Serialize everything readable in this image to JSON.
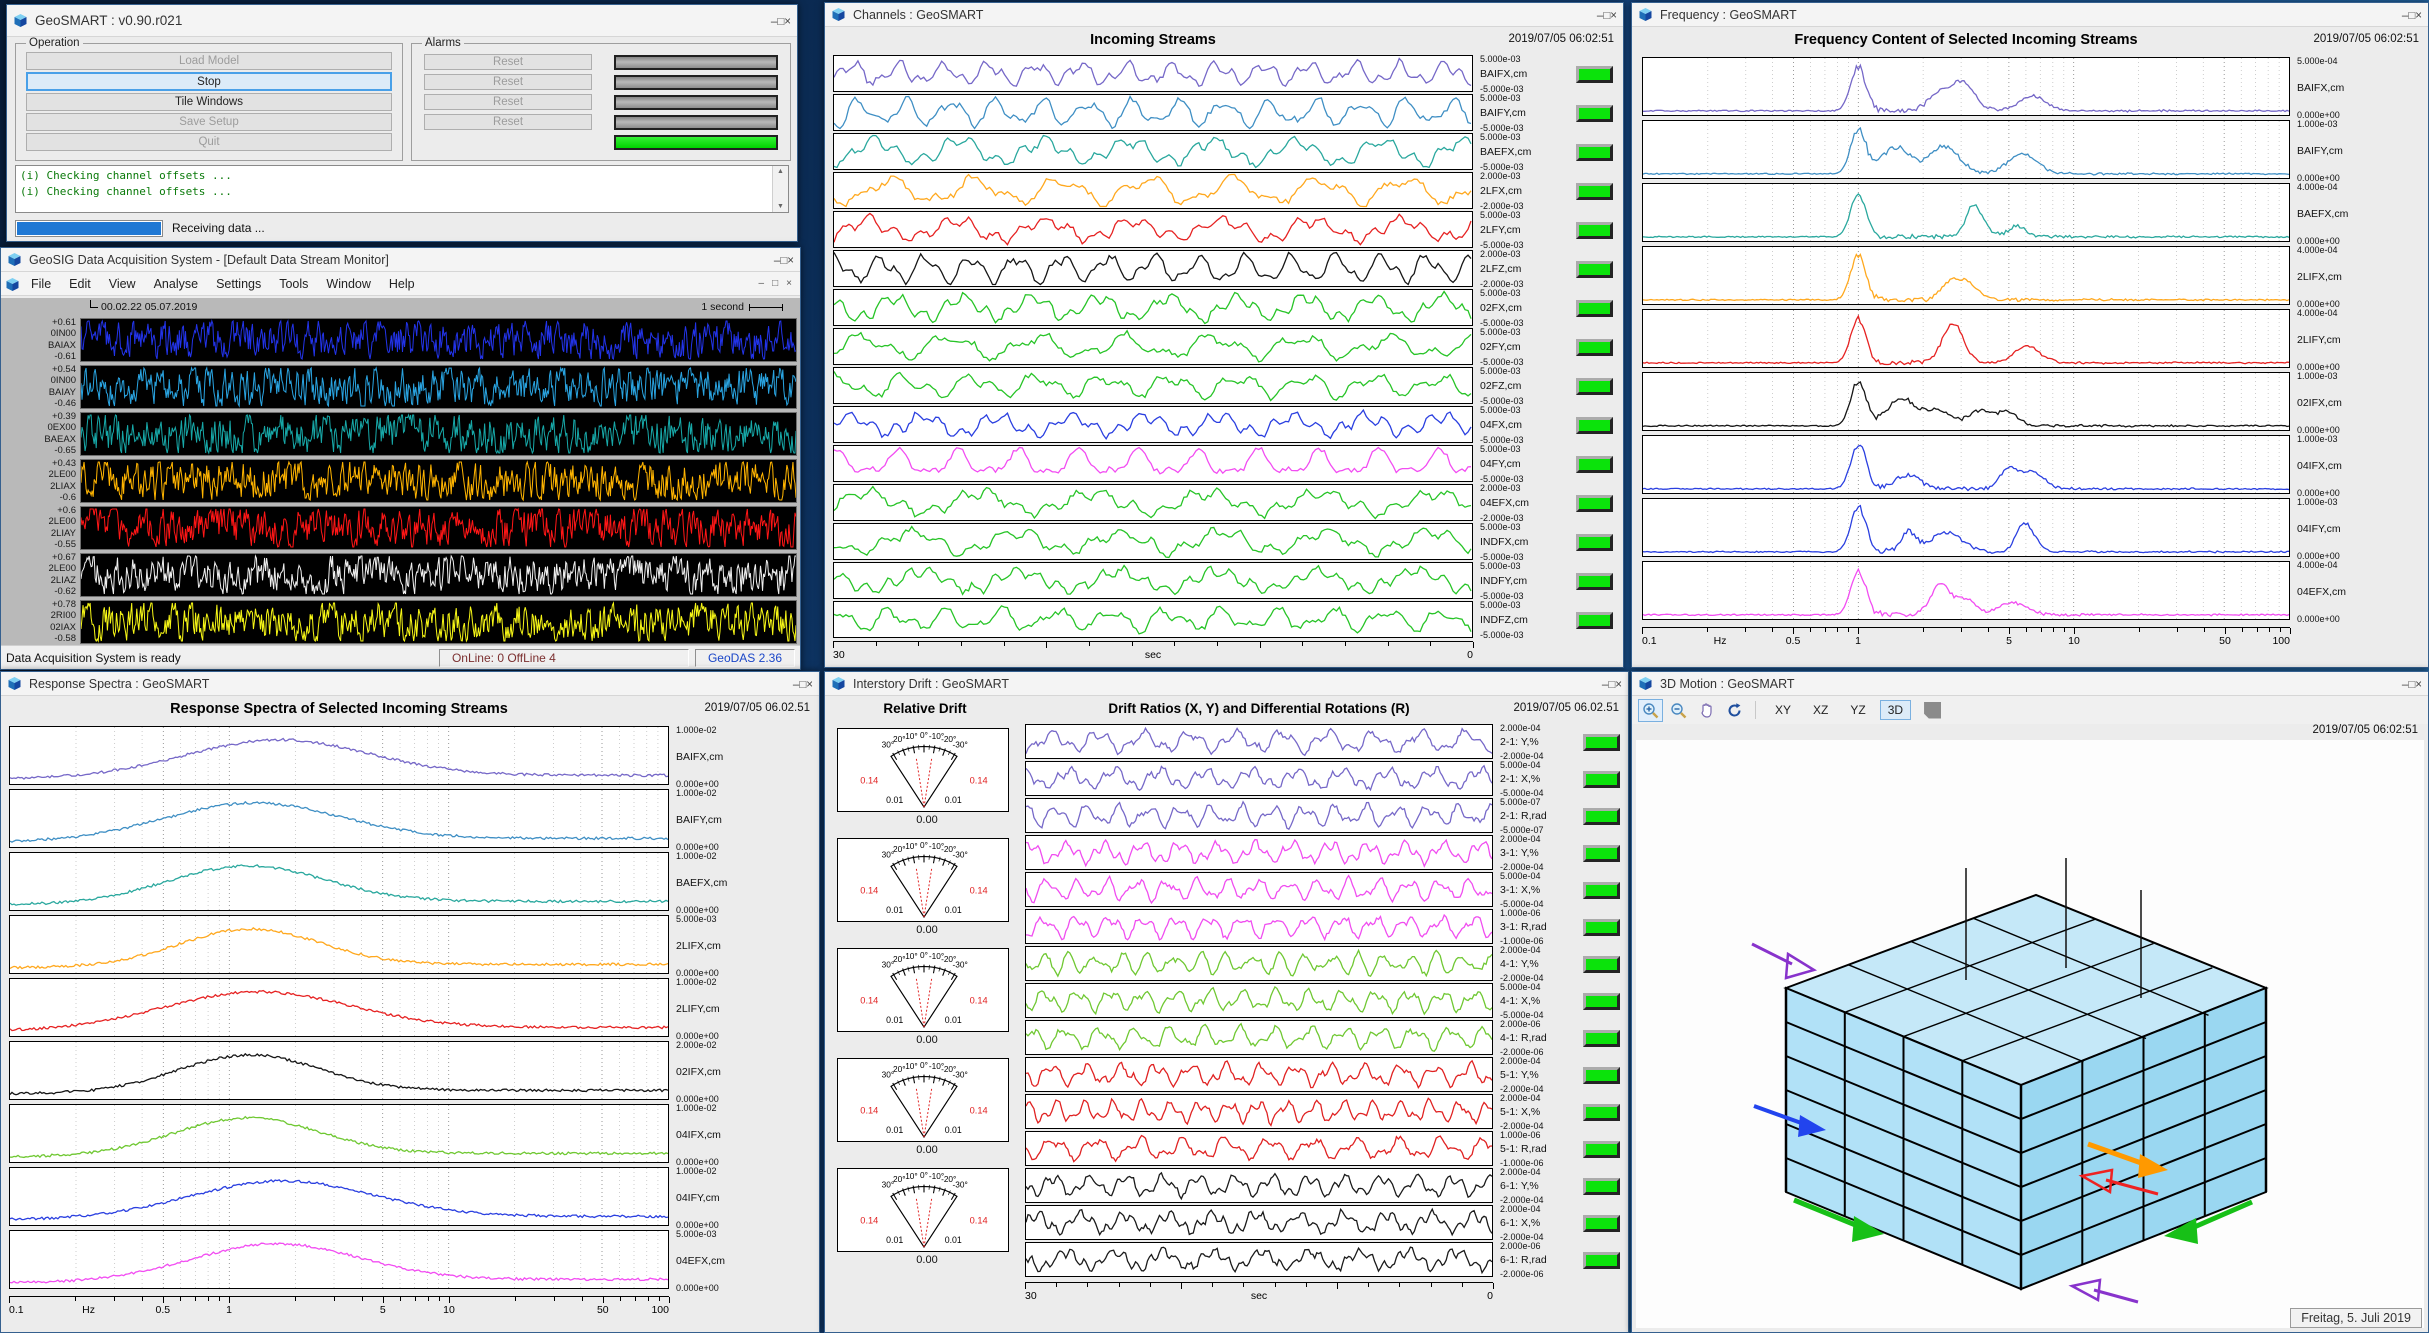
{
  "chrome": {
    "buttons": [
      "–",
      "□",
      "×"
    ]
  },
  "desktop": {
    "date_tooltip": "Freitag, 5. Juli 2019"
  },
  "control_window": {
    "title": "GeoSMART :  v0.90.r021",
    "operation": {
      "legend": "Operation",
      "buttons": [
        {
          "label": "Load Model",
          "state": "disabled"
        },
        {
          "label": "Stop",
          "state": "active"
        },
        {
          "label": "Tile Windows",
          "state": "normal"
        },
        {
          "label": "Save Setup",
          "state": "disabled"
        },
        {
          "label": "Quit",
          "state": "disabled"
        }
      ]
    },
    "alarms": {
      "legend": "Alarms",
      "reset_label": "Reset",
      "rows": [
        {
          "reset": true,
          "bar": "gray"
        },
        {
          "reset": true,
          "bar": "gray"
        },
        {
          "reset": true,
          "bar": "gray"
        },
        {
          "reset": true,
          "bar": "gray"
        },
        {
          "reset": false,
          "bar": "green"
        }
      ]
    },
    "log_lines": [
      "(i) Checking channel offsets ...",
      "(i) Checking channel offsets ..."
    ],
    "progress_label": "Receiving data ...",
    "scroll_up": "▲",
    "scroll_down": "▼"
  },
  "das_window": {
    "title": "GeoSIG Data Acquisition System - [Default Data Stream Monitor]",
    "menu": [
      "File",
      "Edit",
      "View",
      "Analyse",
      "Settings",
      "Tools",
      "Window",
      "Help"
    ],
    "mdi_buttons": [
      "–",
      "□",
      "×"
    ],
    "header": {
      "timestamp": "00.02.22 05.07.2019",
      "scale_label": "1 second"
    },
    "channels": [
      {
        "max": "+0.61",
        "id": "0IN00",
        "name": "BAIAX",
        "min": "-0.61",
        "color": "#2233e8"
      },
      {
        "max": "+0.54",
        "id": "0IN00",
        "name": "BAIAY",
        "min": "-0.46",
        "color": "#29a3e0"
      },
      {
        "max": "+0.39",
        "id": "0EX00",
        "name": "BAEAX",
        "min": "-0.65",
        "color": "#17a8a8"
      },
      {
        "max": "+0.43",
        "id": "2LE00",
        "name": "2LIAX",
        "min": "-0.6",
        "color": "#ffb400"
      },
      {
        "max": "+0.6",
        "id": "2LE00",
        "name": "2LIAY",
        "min": "-0.55",
        "color": "#ff1616"
      },
      {
        "max": "+0.67",
        "id": "2LE00",
        "name": "2LIAZ",
        "min": "-0.62",
        "color": "#efefef"
      },
      {
        "max": "+0.78",
        "id": "2RI00",
        "name": "02IAX",
        "min": "-0.58",
        "color": "#f6f616"
      }
    ],
    "status": {
      "message": "Data Acquisition System is ready",
      "online": "OnLine: 0  OffLine 4",
      "version": "GeoDAS 2.36"
    }
  },
  "channels_window": {
    "title": "Channels : GeoSMART",
    "heading": "Incoming Streams",
    "timestamp": "2019/07/05 06:02:51",
    "x_axis": {
      "left": "30",
      "unit": "sec",
      "right": "0"
    },
    "streams": [
      {
        "name": "BAIFX,cm",
        "max": "5.000e-03",
        "min": "-5.000e-03",
        "color": "#7668c8"
      },
      {
        "name": "BAIFY,cm",
        "max": "5.000e-03",
        "min": "-5.000e-03",
        "color": "#3f8fc4"
      },
      {
        "name": "BAEFX,cm",
        "max": "5.000e-03",
        "min": "-5.000e-03",
        "color": "#2aa89e"
      },
      {
        "name": "2LFX,cm",
        "max": "2.000e-03",
        "min": "-2.000e-03",
        "color": "#ffa81e"
      },
      {
        "name": "2LFY,cm",
        "max": "5.000e-03",
        "min": "-5.000e-03",
        "color": "#e62222"
      },
      {
        "name": "2LFZ,cm",
        "max": "2.000e-03",
        "min": "-2.000e-03",
        "color": "#161616"
      },
      {
        "name": "02FX,cm",
        "max": "5.000e-03",
        "min": "-5.000e-03",
        "color": "#27c427"
      },
      {
        "name": "02FY,cm",
        "max": "5.000e-03",
        "min": "-5.000e-03",
        "color": "#27c427"
      },
      {
        "name": "02FZ,cm",
        "max": "5.000e-03",
        "min": "-5.000e-03",
        "color": "#27c427"
      },
      {
        "name": "04FX,cm",
        "max": "5.000e-03",
        "min": "-5.000e-03",
        "color": "#2a3fe0"
      },
      {
        "name": "04FY,cm",
        "max": "5.000e-03",
        "min": "-5.000e-03",
        "color": "#f24df2"
      },
      {
        "name": "04EFX,cm",
        "max": "2.000e-03",
        "min": "-2.000e-03",
        "color": "#27c427"
      },
      {
        "name": "INDFX,cm",
        "max": "5.000e-03",
        "min": "-5.000e-03",
        "color": "#27c427"
      },
      {
        "name": "INDFY,cm",
        "max": "5.000e-03",
        "min": "-5.000e-03",
        "color": "#27c427"
      },
      {
        "name": "INDFZ,cm",
        "max": "5.000e-03",
        "min": "-5.000e-03",
        "color": "#27c427"
      }
    ]
  },
  "frequency_window": {
    "title": "Frequency : GeoSMART",
    "heading": "Frequency Content of Selected Incoming Streams",
    "timestamp": "2019/07/05 06:02:51",
    "x_axis": {
      "ticks": [
        "0.1",
        "0.5",
        "1",
        "5",
        "10",
        "50",
        "100"
      ],
      "unit": "Hz"
    },
    "streams": [
      {
        "name": "BAIFX,cm",
        "max": "5.000e-04",
        "min": "0.000e+00",
        "color": "#7668c8"
      },
      {
        "name": "BAIFY,cm",
        "max": "1.000e-03",
        "min": "0.000e+00",
        "color": "#3f8fc4"
      },
      {
        "name": "BAEFX,cm",
        "max": "4.000e-04",
        "min": "0.000e+00",
        "color": "#2aa89e"
      },
      {
        "name": "2LIFX,cm",
        "max": "4.000e-04",
        "min": "0.000e+00",
        "color": "#ffa81e"
      },
      {
        "name": "2LIFY,cm",
        "max": "4.000e-04",
        "min": "0.000e+00",
        "color": "#e62222"
      },
      {
        "name": "02IFX,cm",
        "max": "1.000e-03",
        "min": "0.000e+00",
        "color": "#161616"
      },
      {
        "name": "04IFX,cm",
        "max": "1.000e-03",
        "min": "0.000e+00",
        "color": "#2a3fe0"
      },
      {
        "name": "04IFY,cm",
        "max": "1.000e-03",
        "min": "0.000e+00",
        "color": "#2a3fe0"
      },
      {
        "name": "04EFX,cm",
        "max": "4.000e-04",
        "min": "0.000e+00",
        "color": "#f24df2"
      }
    ]
  },
  "response_window": {
    "title": "Response Spectra : GeoSMART",
    "heading": "Response Spectra of Selected Incoming Streams",
    "timestamp": "2019/07/05 06.02.51",
    "x_axis": {
      "ticks": [
        "0.1",
        "0.5",
        "1",
        "5",
        "10",
        "50",
        "100"
      ],
      "unit": "Hz"
    },
    "streams": [
      {
        "name": "BAIFX,cm",
        "max": "1.000e-02",
        "min": "0.000e+00",
        "color": "#7668c8"
      },
      {
        "name": "BAIFY,cm",
        "max": "1.000e-02",
        "min": "0.000e+00",
        "color": "#3f8fc4"
      },
      {
        "name": "BAEFX,cm",
        "max": "1.000e-02",
        "min": "0.000e+00",
        "color": "#2aa89e"
      },
      {
        "name": "2LIFX,cm",
        "max": "5.000e-03",
        "min": "0.000e+00",
        "color": "#ffa81e"
      },
      {
        "name": "2LIFY,cm",
        "max": "1.000e-02",
        "min": "0.000e+00",
        "color": "#e62222"
      },
      {
        "name": "02IFX,cm",
        "max": "2.000e-02",
        "min": "0.000e+00",
        "color": "#161616"
      },
      {
        "name": "04IFX,cm",
        "max": "1.000e-02",
        "min": "0.000e+00",
        "color": "#6fc832"
      },
      {
        "name": "04IFY,cm",
        "max": "1.000e-02",
        "min": "0.000e+00",
        "color": "#2a3fe0"
      },
      {
        "name": "04EFX,cm",
        "max": "5.000e-03",
        "min": "0.000e+00",
        "color": "#f24df2"
      }
    ]
  },
  "drift_window": {
    "title": "Interstory Drift : GeoSMART",
    "gauge_heading": "Relative Drift",
    "plots_heading": "Drift Ratios (X, Y) and Differential Rotations (R)",
    "timestamp": "2019/07/05 06.02.51",
    "x_axis": {
      "left": "30",
      "unit": "sec",
      "right": "0"
    },
    "gauge": {
      "degree_labels": [
        "30°",
        "20°",
        "10°",
        "0°",
        "-10°",
        "-20°",
        "-30°"
      ],
      "limit_label": "0.14",
      "inner_label": "0.01",
      "value": "0.00",
      "count": 5
    },
    "streams": [
      {
        "name": "2-1: Y,%",
        "max": "2.000e-04",
        "min": "-2.000e-04",
        "color": "#7668c8"
      },
      {
        "name": "2-1: X,%",
        "max": "5.000e-04",
        "min": "-5.000e-04",
        "color": "#7668c8"
      },
      {
        "name": "2-1: R,rad",
        "max": "5.000e-07",
        "min": "-5.000e-07",
        "color": "#7668c8"
      },
      {
        "name": "3-1: Y,%",
        "max": "2.000e-04",
        "min": "-2.000e-04",
        "color": "#f04df0"
      },
      {
        "name": "3-1: X,%",
        "max": "5.000e-04",
        "min": "-5.000e-04",
        "color": "#f04df0"
      },
      {
        "name": "3-1: R,rad",
        "max": "1.000e-06",
        "min": "-1.000e-06",
        "color": "#f04df0"
      },
      {
        "name": "4-1: Y,%",
        "max": "2.000e-04",
        "min": "-2.000e-04",
        "color": "#6fc832"
      },
      {
        "name": "4-1: X,%",
        "max": "5.000e-04",
        "min": "-5.000e-04",
        "color": "#6fc832"
      },
      {
        "name": "4-1: R,rad",
        "max": "2.000e-06",
        "min": "-2.000e-06",
        "color": "#6fc832"
      },
      {
        "name": "5-1: Y,%",
        "max": "2.000e-04",
        "min": "-2.000e-04",
        "color": "#e02222"
      },
      {
        "name": "5-1: X,%",
        "max": "2.000e-04",
        "min": "-2.000e-04",
        "color": "#e02222"
      },
      {
        "name": "5-1: R,rad",
        "max": "1.000e-06",
        "min": "-1.000e-06",
        "color": "#e02222"
      },
      {
        "name": "6-1: Y,%",
        "max": "2.000e-04",
        "min": "-2.000e-04",
        "color": "#1a1a1a"
      },
      {
        "name": "6-1: X,%",
        "max": "2.000e-04",
        "min": "-2.000e-04",
        "color": "#1a1a1a"
      },
      {
        "name": "6-1: R,rad",
        "max": "2.000e-06",
        "min": "-2.000e-06",
        "color": "#1a1a1a"
      }
    ]
  },
  "motion_window": {
    "title": "3D Motion : GeoSMART",
    "timestamp": "2019/07/05 06:02:51",
    "toolbar": {
      "icons": [
        "zoom-in",
        "zoom-out",
        "pan",
        "rotate"
      ],
      "views": [
        "XY",
        "XZ",
        "YZ",
        "3D"
      ],
      "active_view": "3D"
    }
  },
  "theme": {
    "led_on": "#0be30b",
    "accent": "#49a0e8"
  }
}
